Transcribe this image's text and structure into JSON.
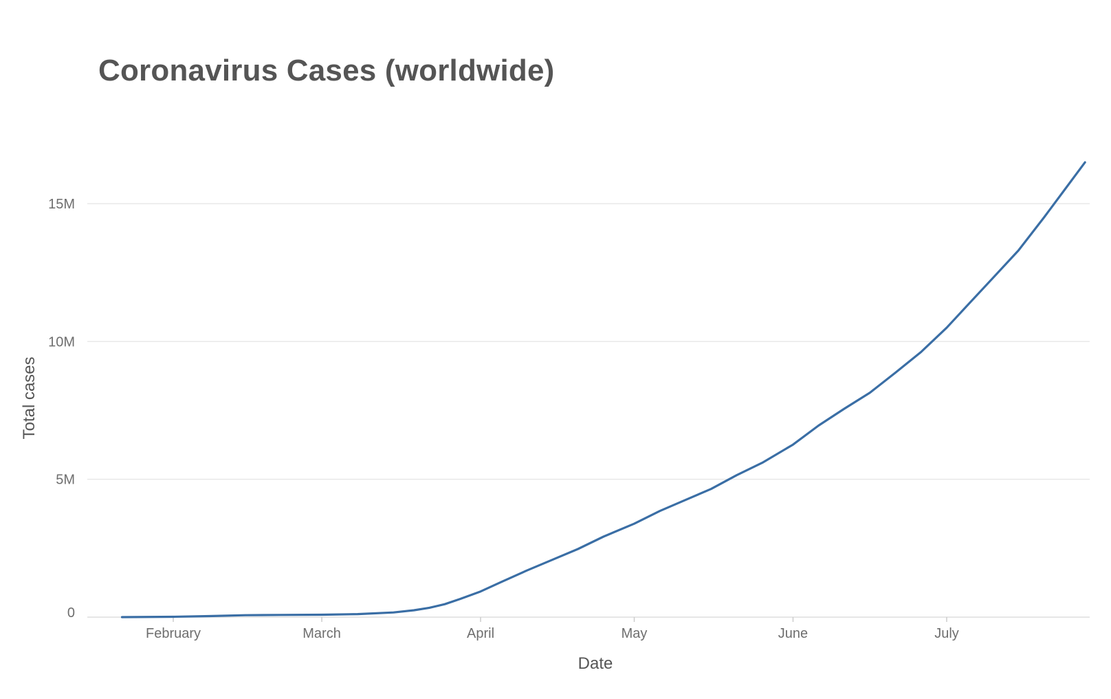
{
  "chart_data": {
    "type": "line",
    "title": "Coronavirus Cases (worldwide)",
    "xlabel": "Date",
    "ylabel": "Total cases",
    "x_ticks": [
      "February",
      "March",
      "April",
      "May",
      "June",
      "July"
    ],
    "y_ticks": [
      "0",
      "5M",
      "10M",
      "15M"
    ],
    "y_tick_values": [
      0,
      5000000,
      10000000,
      15000000
    ],
    "ylim": [
      0,
      17000000
    ],
    "xlim": [
      "2020-01-22",
      "2020-07-28"
    ],
    "grid": true,
    "line_color": "#3a6ea5",
    "series": [
      {
        "x": [
          "2020-01-22",
          "2020-02-01",
          "2020-02-08",
          "2020-02-15",
          "2020-02-22",
          "2020-03-01",
          "2020-03-08",
          "2020-03-15",
          "2020-03-19",
          "2020-03-22",
          "2020-03-25",
          "2020-03-28",
          "2020-04-01",
          "2020-04-05",
          "2020-04-10",
          "2020-04-15",
          "2020-04-20",
          "2020-04-25",
          "2020-05-01",
          "2020-05-06",
          "2020-05-11",
          "2020-05-16",
          "2020-05-21",
          "2020-05-26",
          "2020-06-01",
          "2020-06-06",
          "2020-06-11",
          "2020-06-16",
          "2020-06-21",
          "2020-06-26",
          "2020-07-01",
          "2020-07-05",
          "2020-07-10",
          "2020-07-15",
          "2020-07-20",
          "2020-07-24",
          "2020-07-28"
        ],
        "values": [
          600,
          12000,
          37000,
          69000,
          79000,
          88000,
          110000,
          170000,
          250000,
          340000,
          470000,
          660000,
          930000,
          1270000,
          1690000,
          2080000,
          2470000,
          2920000,
          3390000,
          3850000,
          4250000,
          4650000,
          5150000,
          5600000,
          6260000,
          6950000,
          7560000,
          8140000,
          8870000,
          9620000,
          10500000,
          11300000,
          12300000,
          13300000,
          14500000,
          15500000,
          16500000
        ]
      }
    ]
  }
}
